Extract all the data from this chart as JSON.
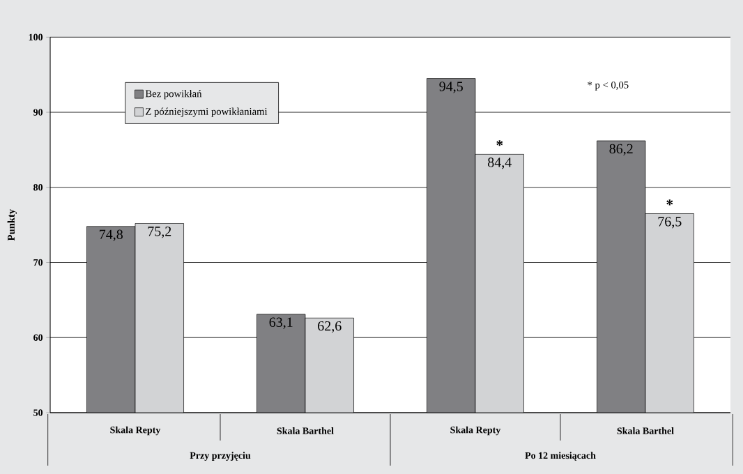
{
  "chart_data": {
    "type": "bar",
    "ylabel": "Punkty",
    "categories": [
      "Skala Repty",
      "Skala Barthel",
      "Skala Repty",
      "Skala Barthel"
    ],
    "series": [
      {
        "name": "Bez powikłań",
        "color": "#808083",
        "values": [
          74.8,
          63.1,
          94.5,
          86.2
        ],
        "value_labels": [
          "74,8",
          "63,1",
          "94,5",
          "86,2"
        ]
      },
      {
        "name": "Z późniejszymi powikłaniami",
        "color": "#d2d3d5",
        "values": [
          75.2,
          62.6,
          84.4,
          76.5
        ],
        "value_labels": [
          "75,2",
          "62,6",
          "84,4",
          "76,5"
        ]
      }
    ],
    "ylim": [
      50,
      100
    ],
    "yticks": [
      50,
      60,
      70,
      80,
      90,
      100
    ],
    "grid": "y",
    "legend": "top left",
    "annotations": [
      "Przy przyjęciu",
      "Po 12 miesiącach",
      "* p < 0,05",
      "*",
      "*"
    ]
  }
}
